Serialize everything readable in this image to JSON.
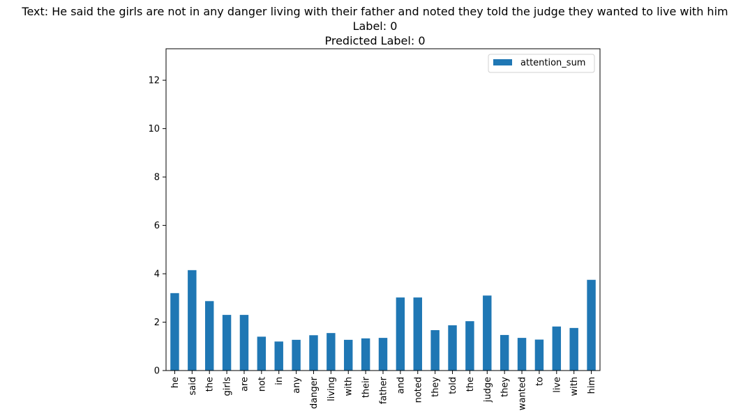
{
  "figure": {
    "title_text": "Text: He said the girls are not in any danger living with their father and noted they told the judge they wanted to live with him",
    "title_label": "Label: 0",
    "title_predicted": "Predicted Label: 0"
  },
  "colors": {
    "bar": "#1f77b4",
    "axis": "#000000",
    "background": "#ffffff"
  },
  "chart_data": {
    "type": "bar",
    "title": "Text: He said the girls are not in any danger living with their father and noted they told the judge they wanted to live with him\nLabel: 0\nPredicted Label: 0",
    "xlabel": "",
    "ylabel": "",
    "categories": [
      "he",
      "said",
      "the",
      "girls",
      "are",
      "not",
      "in",
      "any",
      "danger",
      "living",
      "with",
      "their",
      "father",
      "and",
      "noted",
      "they",
      "told",
      "the",
      "judge",
      "they",
      "wanted",
      "to",
      "live",
      "with",
      "him"
    ],
    "series": [
      {
        "name": "attention_sum",
        "values": [
          3.2,
          4.15,
          2.87,
          2.3,
          2.3,
          1.4,
          1.2,
          1.27,
          1.46,
          1.55,
          1.27,
          1.33,
          1.35,
          3.02,
          3.02,
          1.67,
          1.87,
          2.04,
          3.1,
          1.47,
          1.35,
          1.28,
          1.82,
          1.76,
          3.75
        ]
      }
    ],
    "yticks": [
      0,
      2,
      4,
      6,
      8,
      10,
      12
    ],
    "ylim": [
      0,
      13.3
    ],
    "grid": false,
    "legend_position": "top-right"
  }
}
